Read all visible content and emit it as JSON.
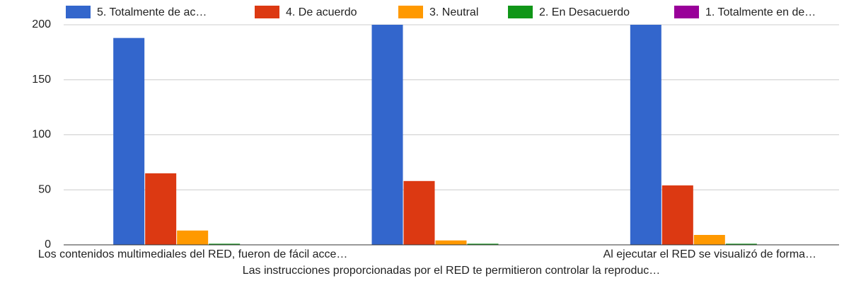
{
  "chart_data": {
    "type": "bar",
    "categories": [
      "Los contenidos multimediales del RED, fueron de fácil acce…",
      "Las instrucciones proporcionadas por el RED te permitieron controlar la reproduc…",
      "Al ejecutar el RED se visualizó de forma…"
    ],
    "series": [
      {
        "name": "5. Totalmente de ac…",
        "color": "#3366cc",
        "values": [
          188,
          200,
          200
        ]
      },
      {
        "name": "4. De acuerdo",
        "color": "#dc3912",
        "values": [
          65,
          58,
          54
        ]
      },
      {
        "name": "3. Neutral",
        "color": "#ff9900",
        "values": [
          13,
          4,
          9
        ]
      },
      {
        "name": "2. En Desacuerdo",
        "color": "#109618",
        "values": [
          1,
          1,
          1
        ]
      },
      {
        "name": "1. Totalmente en de…",
        "color": "#990099",
        "values": [
          0,
          0,
          0
        ]
      }
    ],
    "ylim": [
      0,
      200
    ],
    "yticks": [
      0,
      50,
      100,
      150,
      200
    ],
    "grid": true,
    "legend": "top"
  }
}
